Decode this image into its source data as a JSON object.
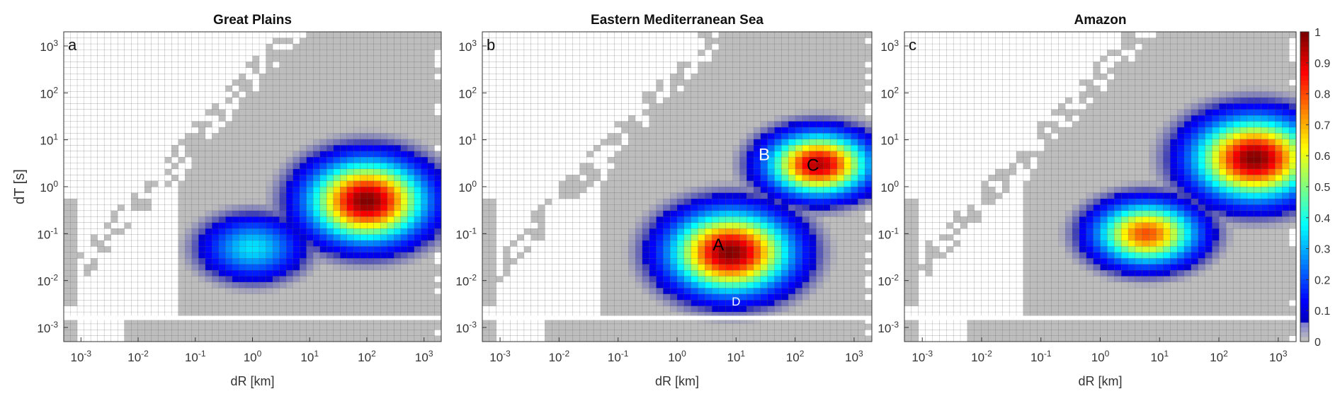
{
  "colorbar": {
    "ticks": [
      "0",
      "0.1",
      "0.2",
      "0.3",
      "0.4",
      "0.5",
      "0.6",
      "0.7",
      "0.8",
      "0.9",
      "1"
    ],
    "colormap": "jet",
    "range": [
      0,
      1
    ]
  },
  "colors": {
    "grey_cell": "#bdbdbd",
    "cell_line": "#333333",
    "background": "#ffffff"
  },
  "chart_data": [
    {
      "type": "heatmap",
      "panel_label": "a",
      "title": "Great Plains",
      "xlabel": "dR [km]",
      "ylabel": "dT [s]",
      "x_scale": "log",
      "y_scale": "log",
      "xlim": [
        0.0005,
        2000
      ],
      "ylim": [
        0.0005,
        2000
      ],
      "x_ticks": [
        "10-3",
        "10-2",
        "10-1",
        "100",
        "101",
        "102",
        "103"
      ],
      "y_ticks": [
        "10-3",
        "10-2",
        "10-1",
        "100",
        "101",
        "102",
        "103"
      ],
      "peaks": [
        {
          "dR_km": 100,
          "dT_s": 0.5,
          "value": 1.0
        },
        {
          "dR_km": 1,
          "dT_s": 0.05,
          "value": 0.35
        }
      ],
      "annotations": []
    },
    {
      "type": "heatmap",
      "panel_label": "b",
      "title": "Eastern Mediterranean Sea",
      "xlabel": "dR [km]",
      "ylabel": "",
      "x_scale": "log",
      "y_scale": "log",
      "xlim": [
        0.0005,
        2000
      ],
      "ylim": [
        0.0005,
        2000
      ],
      "x_ticks": [
        "10-3",
        "10-2",
        "10-1",
        "100",
        "101",
        "102",
        "103"
      ],
      "y_ticks": [
        "10-3",
        "10-2",
        "10-1",
        "100",
        "101",
        "102",
        "103"
      ],
      "peaks": [
        {
          "dR_km": 8,
          "dT_s": 0.04,
          "value": 1.0
        },
        {
          "dR_km": 250,
          "dT_s": 3,
          "value": 0.95
        }
      ],
      "annotations": [
        {
          "text": "A",
          "dR_km": 5,
          "dT_s": 0.06,
          "color": "black"
        },
        {
          "text": "B",
          "dR_km": 30,
          "dT_s": 5,
          "color": "white"
        },
        {
          "text": "C",
          "dR_km": 200,
          "dT_s": 3,
          "color": "black"
        },
        {
          "text": "D",
          "dR_km": 10,
          "dT_s": 0.004,
          "color": "white"
        }
      ]
    },
    {
      "type": "heatmap",
      "panel_label": "c",
      "title": "Amazon",
      "xlabel": "dR [km]",
      "ylabel": "",
      "x_scale": "log",
      "y_scale": "log",
      "xlim": [
        0.0005,
        2000
      ],
      "ylim": [
        0.0005,
        2000
      ],
      "x_ticks": [
        "10-3",
        "10-2",
        "10-1",
        "100",
        "101",
        "102",
        "103"
      ],
      "y_ticks": [
        "10-3",
        "10-2",
        "10-1",
        "100",
        "101",
        "102",
        "103"
      ],
      "peaks": [
        {
          "dR_km": 400,
          "dT_s": 4,
          "value": 1.0
        },
        {
          "dR_km": 6,
          "dT_s": 0.1,
          "value": 0.8
        }
      ],
      "annotations": []
    }
  ]
}
